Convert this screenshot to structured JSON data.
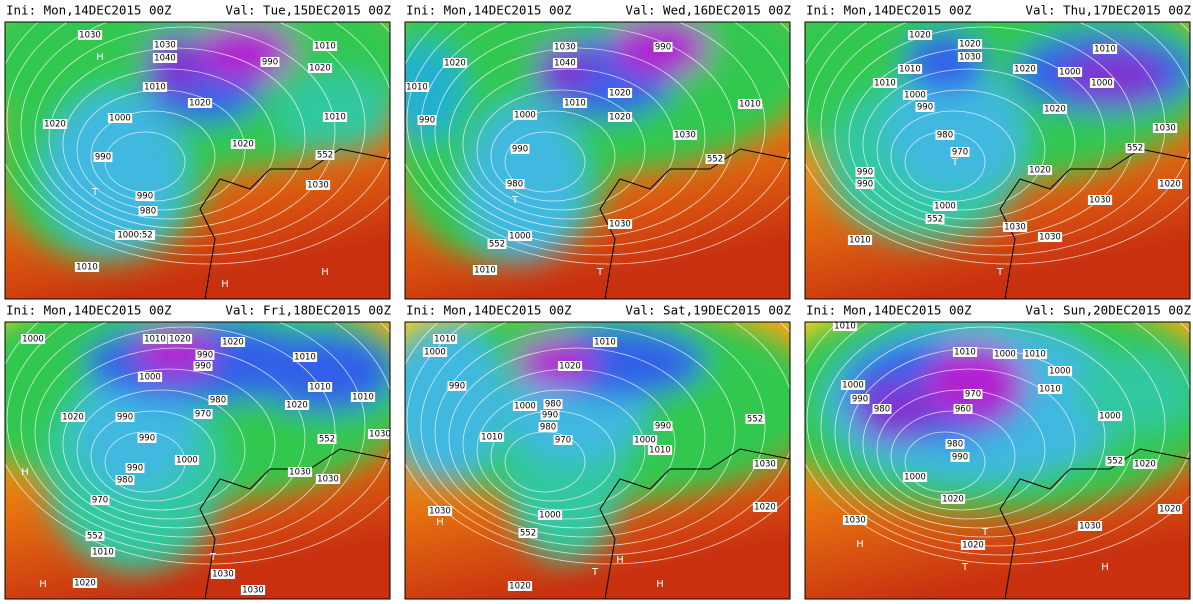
{
  "panels": [
    {
      "init": "Ini: Mon,14DEC2015 00Z",
      "valid": "Val: Tue,15DEC2015 00Z",
      "labels": [
        "1030",
        "1030",
        "1040",
        "990",
        "1010",
        "1020",
        "1010",
        "1020",
        "1000",
        "1020",
        "1010",
        "990",
        "1020",
        "552",
        "1030",
        "990",
        "980",
        "1000:52",
        "1010",
        "T",
        "H",
        "H",
        "H"
      ]
    },
    {
      "init": "Ini: Mon,14DEC2015 00Z",
      "valid": "Val: Wed,16DEC2015 00Z",
      "labels": [
        "1030",
        "1040",
        "990",
        "1020",
        "1010",
        "990",
        "1010",
        "1020",
        "1000",
        "1010",
        "1020",
        "1030",
        "990",
        "980",
        "552",
        "1000",
        "552",
        "1010",
        "1030",
        "T",
        "T"
      ]
    },
    {
      "init": "Ini: Mon,14DEC2015 00Z",
      "valid": "Val: Thu,17DEC2015 00Z",
      "labels": [
        "1020",
        "1020",
        "1030",
        "1010",
        "1000",
        "1000",
        "1020",
        "1010",
        "1000",
        "990",
        "1010",
        "1020",
        "980",
        "970",
        "990",
        "990",
        "1030",
        "552",
        "1020",
        "1030",
        "1020",
        "1000",
        "552",
        "1010",
        "1030",
        "1030",
        "T",
        "T"
      ]
    },
    {
      "init": "Ini: Mon,14DEC2015 00Z",
      "valid": "Val: Fri,18DEC2015 00Z",
      "labels": [
        "1000",
        "1010",
        "1020",
        "990",
        "990",
        "1020",
        "1010",
        "1000",
        "1010",
        "1010",
        "1020",
        "980",
        "990",
        "970",
        "990",
        "1030",
        "552",
        "1020",
        "1000",
        "990",
        "980",
        "970",
        "1030",
        "1030",
        "552",
        "1010",
        "1030",
        "1020",
        "1030",
        "H",
        "T",
        "H"
      ]
    },
    {
      "init": "Ini: Mon,14DEC2015 00Z",
      "valid": "Val: Sat,19DEC2015 00Z",
      "labels": [
        "1010",
        "1000",
        "990",
        "1020",
        "1010",
        "1000",
        "980",
        "990",
        "980",
        "970",
        "990",
        "1000",
        "1010",
        "1010",
        "552",
        "1030",
        "1020",
        "1000",
        "552",
        "1030",
        "H",
        "1020",
        "H",
        "H",
        "T"
      ]
    },
    {
      "init": "Ini: Mon,14DEC2015 00Z",
      "valid": "Val: Sun,20DEC2015 00Z",
      "labels": [
        "1010",
        "1010",
        "1000",
        "1010",
        "1000",
        "990",
        "980",
        "970",
        "960",
        "980",
        "990",
        "1010",
        "1000",
        "1000",
        "552",
        "1020",
        "1000",
        "1020",
        "1030",
        "H",
        "1020",
        "1030",
        "1020",
        "T",
        "H",
        "T"
      ]
    }
  ]
}
